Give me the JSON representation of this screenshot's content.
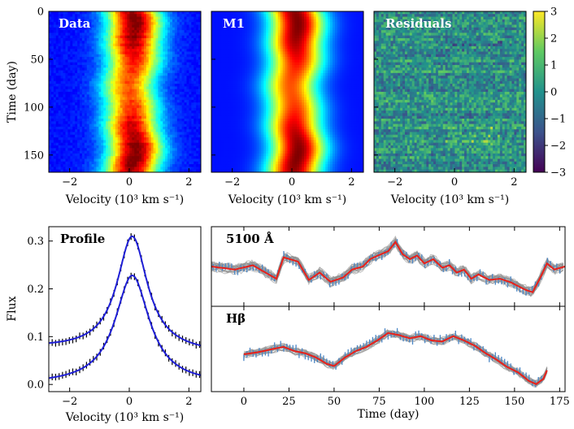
{
  "chart_data": [
    {
      "type": "heatmap",
      "title": "Data",
      "xlabel": "Velocity (10³ km s⁻¹)",
      "ylabel": "Time (day)",
      "xlim": [
        -2.7,
        2.4
      ],
      "ylim": [
        0,
        168
      ],
      "xticks": [
        -2,
        0,
        2
      ],
      "yticks": [
        0,
        50,
        100,
        150
      ],
      "colormap": "jet",
      "line_center_kms": 0.1,
      "line_width_kms": 0.6
    },
    {
      "type": "heatmap",
      "title": "M1",
      "xlabel": "Velocity (10³ km s⁻¹)",
      "xlim": [
        -2.7,
        2.4
      ],
      "ylim": [
        0,
        168
      ],
      "xticks": [
        -2,
        0,
        2
      ],
      "colormap": "jet"
    },
    {
      "type": "heatmap",
      "title": "Residuals",
      "xlabel": "Velocity (10³ km s⁻¹)",
      "xlim": [
        -2.7,
        2.4
      ],
      "ylim": [
        0,
        168
      ],
      "xticks": [
        -2,
        0,
        2
      ],
      "colormap": "viridis",
      "colorbar_range": [
        -3,
        3
      ],
      "colorbar_ticks": [
        3,
        2,
        1,
        0,
        -1,
        -2,
        -3
      ]
    },
    {
      "type": "line",
      "title": "Profile",
      "xlabel": "Velocity (10³ km s⁻¹)",
      "ylabel": "Flux",
      "xlim": [
        -2.7,
        2.4
      ],
      "ylim": [
        -0.015,
        0.33
      ],
      "xticks": [
        -2,
        0,
        2
      ],
      "yticks": [
        0.0,
        0.1,
        0.2,
        0.3
      ],
      "series": [
        {
          "baseline": 0.0,
          "peak": 0.228,
          "center": 0.1,
          "width": 0.7,
          "slope": 0.0
        },
        {
          "baseline": 0.07,
          "peak": 0.31,
          "center": 0.1,
          "width": 0.62,
          "slope": -0.002
        }
      ],
      "colors": {
        "model": "#1f1fd6",
        "data": "#000000"
      }
    },
    {
      "type": "line",
      "title": "5100 Å",
      "xlim": [
        -18,
        178
      ],
      "ylim": [
        0.185,
        0.315
      ],
      "colors": {
        "data": "#4a86c5",
        "model": "#e8201a",
        "samples": "#8c8c8c"
      },
      "x": [
        -18,
        -5,
        5,
        12,
        18,
        22,
        30,
        36,
        42,
        48,
        55,
        60,
        66,
        70,
        76,
        80,
        84,
        88,
        92,
        96,
        100,
        105,
        110,
        114,
        118,
        122,
        126,
        130,
        136,
        142,
        148,
        152,
        156,
        160,
        164,
        168,
        172,
        178
      ],
      "y": [
        0.25,
        0.245,
        0.252,
        0.24,
        0.23,
        0.265,
        0.258,
        0.228,
        0.24,
        0.225,
        0.232,
        0.245,
        0.25,
        0.262,
        0.27,
        0.275,
        0.29,
        0.27,
        0.262,
        0.268,
        0.255,
        0.262,
        0.248,
        0.252,
        0.24,
        0.245,
        0.23,
        0.237,
        0.228,
        0.23,
        0.224,
        0.218,
        0.212,
        0.208,
        0.23,
        0.255,
        0.245,
        0.25
      ]
    },
    {
      "type": "line",
      "title": "Hβ",
      "xlabel": "Time (day)",
      "xlim": [
        -18,
        178
      ],
      "ylim": [
        0.2,
        1.0
      ],
      "xticks": [
        0,
        25,
        50,
        75,
        100,
        125,
        150,
        175
      ],
      "colors": {
        "data": "#4a86c5",
        "model": "#e8201a",
        "samples": "#8c8c8c"
      },
      "x": [
        0,
        8,
        16,
        22,
        28,
        34,
        40,
        46,
        50,
        56,
        62,
        68,
        74,
        80,
        86,
        92,
        98,
        104,
        110,
        116,
        122,
        128,
        134,
        140,
        146,
        152,
        158,
        162,
        166,
        168
      ],
      "y": [
        0.55,
        0.57,
        0.6,
        0.62,
        0.58,
        0.56,
        0.52,
        0.46,
        0.44,
        0.52,
        0.58,
        0.62,
        0.68,
        0.75,
        0.73,
        0.7,
        0.72,
        0.68,
        0.67,
        0.72,
        0.68,
        0.63,
        0.56,
        0.5,
        0.43,
        0.38,
        0.3,
        0.27,
        0.32,
        0.4
      ]
    }
  ]
}
